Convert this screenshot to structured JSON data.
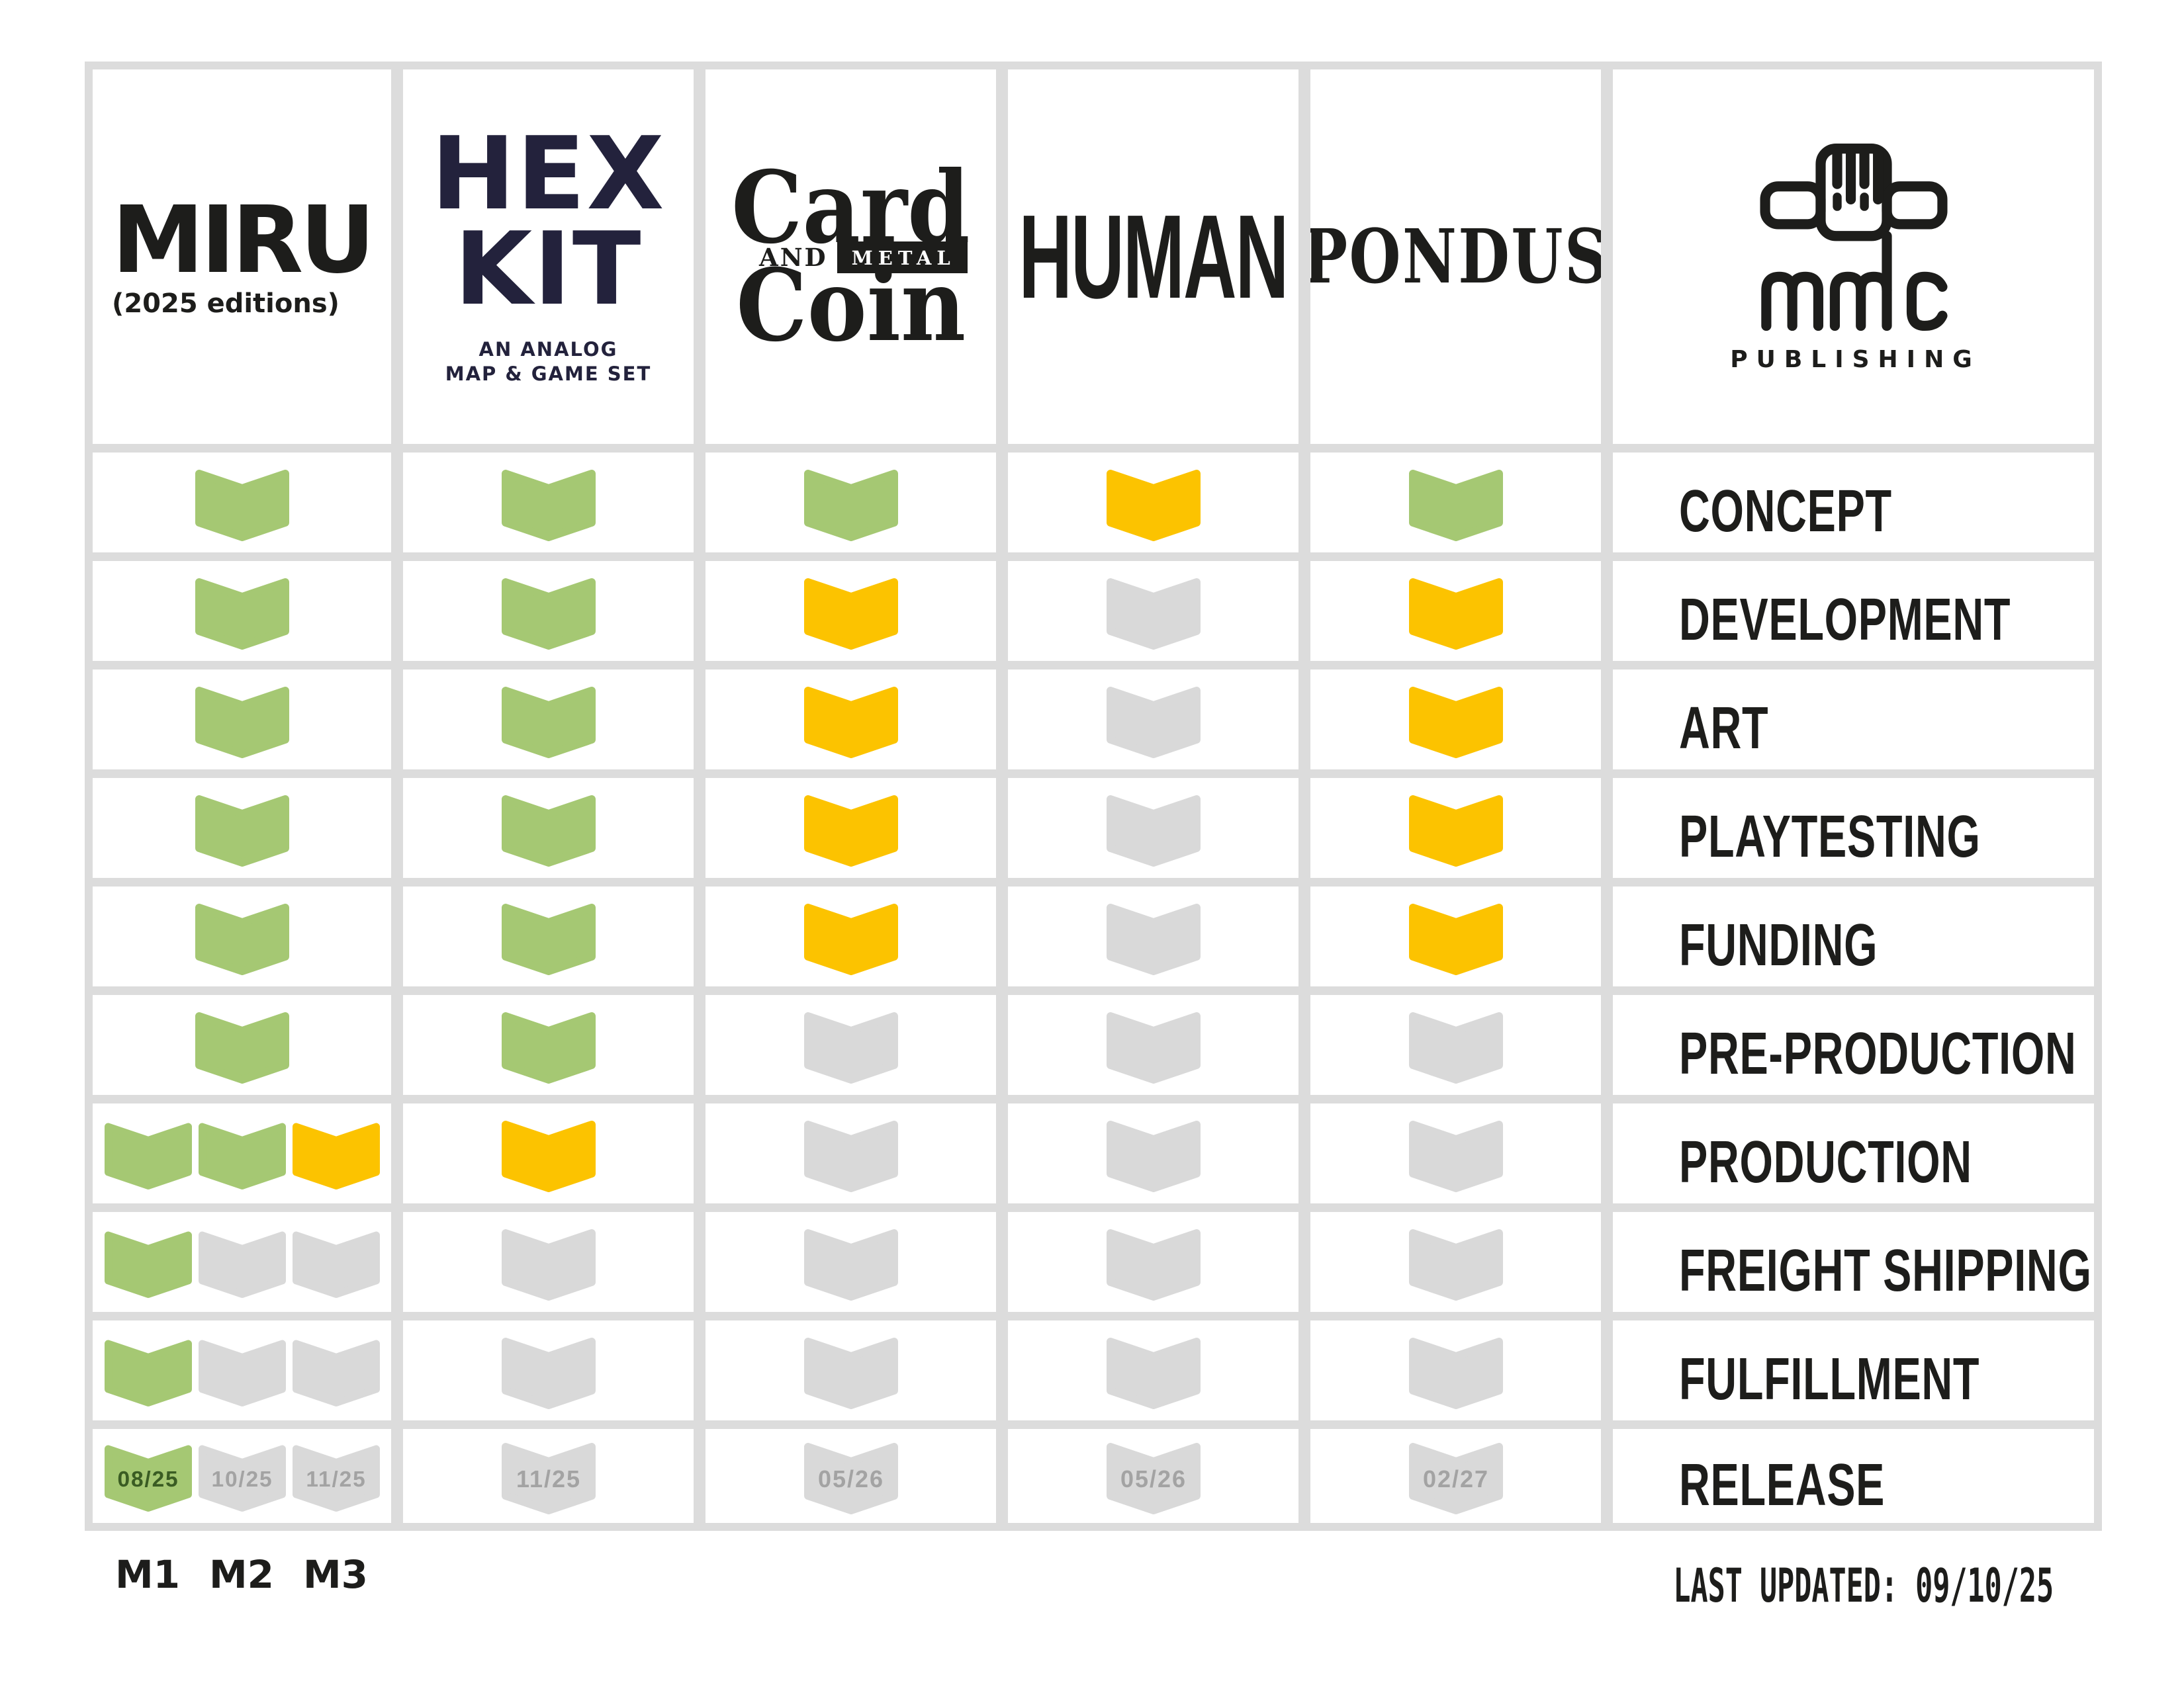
{
  "brands": {
    "miru": {
      "title": "MIRU",
      "subtitle": "(2025 editions)"
    },
    "hexkit": {
      "line1": "HEX",
      "line2": "KIT",
      "sub1": "AN ANALOG",
      "sub2": "MAP & GAME SET"
    },
    "cardcoin": {
      "word1": "Card",
      "conj": "AND",
      "tag": "METAL",
      "word2": "Coin"
    },
    "human": {
      "title": "HUMAN"
    },
    "pondus": {
      "title": "PONDUS"
    },
    "mmc": {
      "subtitle": "PUBLISHING"
    }
  },
  "board": {
    "products": [
      "miru",
      "hexkit",
      "cardcoin",
      "human",
      "pondus"
    ],
    "legend_states": {
      "green": "complete",
      "yellow": "in progress",
      "gray": "not started"
    },
    "rows": [
      {
        "label": "CONCEPT",
        "cells": [
          [
            "green"
          ],
          [
            "green"
          ],
          [
            "green"
          ],
          [
            "yellow"
          ],
          [
            "green"
          ]
        ]
      },
      {
        "label": "DEVELOPMENT",
        "cells": [
          [
            "green"
          ],
          [
            "green"
          ],
          [
            "yellow"
          ],
          [
            "gray"
          ],
          [
            "yellow"
          ]
        ]
      },
      {
        "label": "ART",
        "cells": [
          [
            "green"
          ],
          [
            "green"
          ],
          [
            "yellow"
          ],
          [
            "gray"
          ],
          [
            "yellow"
          ]
        ]
      },
      {
        "label": "PLAYTESTING",
        "cells": [
          [
            "green"
          ],
          [
            "green"
          ],
          [
            "yellow"
          ],
          [
            "gray"
          ],
          [
            "yellow"
          ]
        ]
      },
      {
        "label": "FUNDING",
        "cells": [
          [
            "green"
          ],
          [
            "green"
          ],
          [
            "yellow"
          ],
          [
            "gray"
          ],
          [
            "yellow"
          ]
        ]
      },
      {
        "label": "PRE-PRODUCTION",
        "cells": [
          [
            "green"
          ],
          [
            "green"
          ],
          [
            "gray"
          ],
          [
            "gray"
          ],
          [
            "gray"
          ]
        ]
      },
      {
        "label": "PRODUCTION",
        "cells": [
          [
            "green",
            "green",
            "yellow"
          ],
          [
            "yellow"
          ],
          [
            "gray"
          ],
          [
            "gray"
          ],
          [
            "gray"
          ]
        ]
      },
      {
        "label": "FREIGHT SHIPPING",
        "cells": [
          [
            "green",
            "gray",
            "gray"
          ],
          [
            "gray"
          ],
          [
            "gray"
          ],
          [
            "gray"
          ],
          [
            "gray"
          ]
        ]
      },
      {
        "label": "FULFILLMENT",
        "cells": [
          [
            "green",
            "gray",
            "gray"
          ],
          [
            "gray"
          ],
          [
            "gray"
          ],
          [
            "gray"
          ],
          [
            "gray"
          ]
        ]
      },
      {
        "label": "RELEASE",
        "cells": [
          [
            {
              "state": "green",
              "date": "08/25"
            },
            {
              "state": "gray",
              "date": "10/25"
            },
            {
              "state": "gray",
              "date": "11/25"
            }
          ],
          [
            {
              "state": "gray",
              "date": "11/25"
            }
          ],
          [
            {
              "state": "gray",
              "date": "05/26"
            }
          ],
          [
            {
              "state": "gray",
              "date": "05/26"
            }
          ],
          [
            {
              "state": "gray",
              "date": "02/27"
            }
          ]
        ]
      }
    ]
  },
  "milestones": {
    "m1": "M1",
    "m2": "M2",
    "m3": "M3"
  },
  "footer": {
    "last_updated": "LAST UPDATED: 09/10/25"
  },
  "colors": {
    "green": "#a5c873",
    "yellow": "#fcc300",
    "gray": "#d9d9d9",
    "grid_line": "#dcdcdc",
    "ink": "#1d1d1b",
    "hex_navy": "#23223c",
    "date_green": "#3a5c23",
    "date_gray": "#a3a3a3"
  }
}
